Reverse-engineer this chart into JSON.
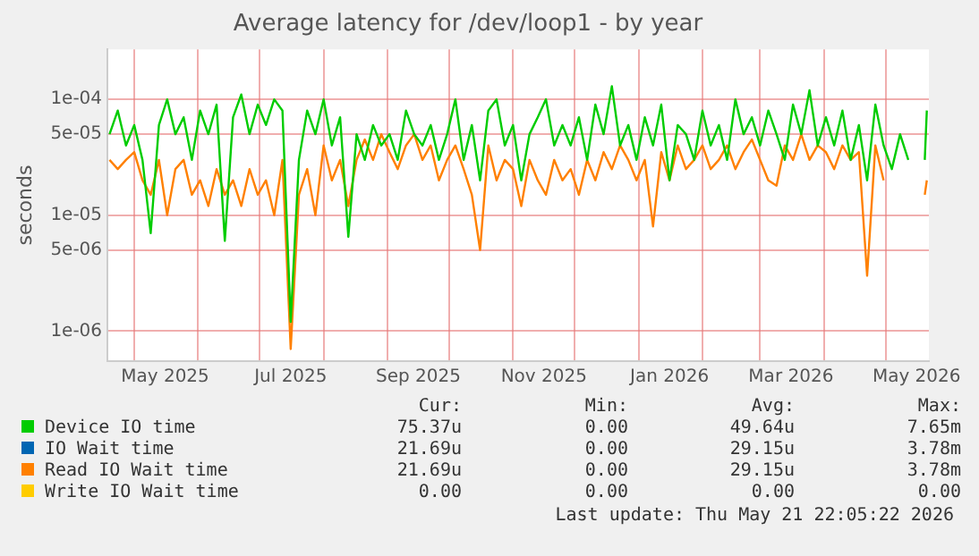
{
  "chart_data": {
    "type": "line",
    "title": "Average latency for /dev/loop1 - by year",
    "ylabel": "seconds",
    "log": "y",
    "grid": true,
    "legend": "bottom",
    "marker": "none",
    "line_style": "solid",
    "x": [
      "2025-04-19",
      "2025-04-23",
      "2025-04-27",
      "2025-05-01",
      "2025-05-05",
      "2025-05-09",
      "2025-05-13",
      "2025-05-17",
      "2025-05-21",
      "2025-05-25",
      "2025-05-29",
      "2025-06-02",
      "2025-06-06",
      "2025-06-10",
      "2025-06-14",
      "2025-06-18",
      "2025-06-22",
      "2025-06-26",
      "2025-06-30",
      "2025-07-04",
      "2025-07-08",
      "2025-07-12",
      "2025-07-16",
      "2025-07-20",
      "2025-07-24",
      "2025-07-28",
      "2025-08-01",
      "2025-08-05",
      "2025-08-09",
      "2025-08-13",
      "2025-08-17",
      "2025-08-21",
      "2025-08-25",
      "2025-08-29",
      "2025-09-02",
      "2025-09-06",
      "2025-09-10",
      "2025-09-14",
      "2025-09-18",
      "2025-09-22",
      "2025-09-26",
      "2025-09-30",
      "2025-10-04",
      "2025-10-08",
      "2025-10-12",
      "2025-10-16",
      "2025-10-20",
      "2025-10-24",
      "2025-10-28",
      "2025-11-01",
      "2025-11-05",
      "2025-11-09",
      "2025-11-13",
      "2025-11-17",
      "2025-11-21",
      "2025-11-25",
      "2025-11-29",
      "2025-12-03",
      "2025-12-07",
      "2025-12-11",
      "2025-12-15",
      "2025-12-19",
      "2025-12-23",
      "2025-12-27",
      "2025-12-31",
      "2026-01-04",
      "2026-01-08",
      "2026-01-12",
      "2026-01-16",
      "2026-01-20",
      "2026-01-24",
      "2026-01-28",
      "2026-02-01",
      "2026-02-05",
      "2026-02-09",
      "2026-02-13",
      "2026-02-17",
      "2026-02-21",
      "2026-02-25",
      "2026-03-01",
      "2026-03-05",
      "2026-03-09",
      "2026-03-13",
      "2026-03-17",
      "2026-03-21",
      "2026-03-25",
      "2026-03-29",
      "2026-04-02",
      "2026-04-06",
      "2026-04-10",
      "2026-04-14",
      "2026-04-18",
      "2026-04-22",
      "2026-04-26",
      "2026-04-30",
      "2026-05-04",
      "2026-05-08",
      "2026-05-12",
      "2026-05-16",
      "2026-05-20",
      "2026-05-21"
    ],
    "xlim": [
      "2025-04-18",
      "2026-05-22"
    ],
    "xticks": [
      {
        "value": "2025-05-01",
        "label": null
      },
      {
        "value": "2025-05-16",
        "label": "May 2025"
      },
      {
        "value": "2025-06-01",
        "label": null
      },
      {
        "value": "2025-07-01",
        "label": null
      },
      {
        "value": "2025-07-16",
        "label": "Jul 2025"
      },
      {
        "value": "2025-08-01",
        "label": null
      },
      {
        "value": "2025-09-01",
        "label": null
      },
      {
        "value": "2025-09-16",
        "label": "Sep 2025"
      },
      {
        "value": "2025-10-01",
        "label": null
      },
      {
        "value": "2025-11-01",
        "label": null
      },
      {
        "value": "2025-11-16",
        "label": "Nov 2025"
      },
      {
        "value": "2025-12-01",
        "label": null
      },
      {
        "value": "2026-01-01",
        "label": null
      },
      {
        "value": "2026-01-16",
        "label": "Jan 2026"
      },
      {
        "value": "2026-02-01",
        "label": null
      },
      {
        "value": "2026-03-01",
        "label": null
      },
      {
        "value": "2026-03-16",
        "label": "Mar 2026"
      },
      {
        "value": "2026-04-01",
        "label": null
      },
      {
        "value": "2026-05-01",
        "label": null
      },
      {
        "value": "2026-05-16",
        "label": "May 2026"
      }
    ],
    "ylim": [
      5.5e-07,
      0.00027
    ],
    "yticks": [
      {
        "value": 1e-06,
        "label": "1e-06"
      },
      {
        "value": 5e-06,
        "label": "5e-06"
      },
      {
        "value": 1e-05,
        "label": "1e-05"
      },
      {
        "value": 5e-05,
        "label": "5e-05"
      },
      {
        "value": 0.0001,
        "label": "1e-04"
      }
    ],
    "series": [
      {
        "name": "Device IO time",
        "color": "#00cc00",
        "values": [
          5e-05,
          8e-05,
          4e-05,
          6e-05,
          3e-05,
          7e-06,
          6e-05,
          0.0001,
          5e-05,
          7e-05,
          3e-05,
          8e-05,
          5e-05,
          9e-05,
          6e-06,
          7e-05,
          0.00011,
          5e-05,
          9e-05,
          6e-05,
          0.0001,
          8e-05,
          1.2e-06,
          3e-05,
          8e-05,
          5e-05,
          0.0001,
          4e-05,
          7e-05,
          6.5e-06,
          5e-05,
          3e-05,
          6e-05,
          4e-05,
          5e-05,
          3e-05,
          8e-05,
          5e-05,
          4e-05,
          6e-05,
          3e-05,
          5e-05,
          0.0001,
          3e-05,
          6e-05,
          2e-05,
          8e-05,
          0.0001,
          4e-05,
          6e-05,
          2e-05,
          5e-05,
          7e-05,
          0.0001,
          4e-05,
          6e-05,
          4e-05,
          7e-05,
          3e-05,
          9e-05,
          5e-05,
          0.00013,
          4e-05,
          6e-05,
          3e-05,
          7e-05,
          4e-05,
          9e-05,
          2e-05,
          6e-05,
          5e-05,
          3e-05,
          8e-05,
          4e-05,
          6e-05,
          3e-05,
          0.0001,
          5e-05,
          7e-05,
          4e-05,
          8e-05,
          5e-05,
          3e-05,
          9e-05,
          5e-05,
          0.00012,
          4e-05,
          7e-05,
          4e-05,
          8e-05,
          3e-05,
          6e-05,
          2e-05,
          9e-05,
          4e-05,
          2.5e-05,
          5e-05,
          3e-05,
          null,
          3e-05,
          8e-05
        ]
      },
      {
        "name": "IO Wait time",
        "color": "#0066b3",
        "values": [
          null,
          null,
          null,
          null,
          null,
          null,
          null,
          null,
          null,
          null,
          null,
          null,
          null,
          null,
          null,
          null,
          null,
          null,
          null,
          null,
          null,
          null,
          null,
          null,
          null,
          null,
          null,
          null,
          null,
          null,
          null,
          null,
          null,
          null,
          null,
          null,
          null,
          null,
          null,
          null,
          null,
          null,
          null,
          null,
          null,
          null,
          null,
          null,
          null,
          null,
          null,
          null,
          null,
          null,
          null,
          null,
          null,
          null,
          null,
          null,
          null,
          null,
          null,
          null,
          null,
          null,
          null,
          null,
          null,
          null,
          null,
          null,
          null,
          null,
          null,
          null,
          null,
          null,
          null,
          null,
          null,
          null,
          null,
          null,
          null,
          null,
          null,
          null,
          null,
          null,
          null,
          null,
          null,
          null,
          null,
          null,
          null,
          null,
          null,
          null,
          null
        ]
      },
      {
        "name": "Read IO Wait time",
        "color": "#ff8000",
        "values": [
          3e-05,
          2.5e-05,
          3e-05,
          3.5e-05,
          2e-05,
          1.5e-05,
          3e-05,
          1e-05,
          2.5e-05,
          3e-05,
          1.5e-05,
          2e-05,
          1.2e-05,
          2.5e-05,
          1.5e-05,
          2e-05,
          1.2e-05,
          2.5e-05,
          1.5e-05,
          2e-05,
          1e-05,
          3e-05,
          7e-07,
          1.5e-05,
          2.5e-05,
          1e-05,
          4e-05,
          2e-05,
          3e-05,
          1.2e-05,
          3e-05,
          4.5e-05,
          3e-05,
          5e-05,
          3.5e-05,
          2.5e-05,
          4e-05,
          5e-05,
          3e-05,
          4e-05,
          2e-05,
          3e-05,
          4e-05,
          2.5e-05,
          1.5e-05,
          5e-06,
          4e-05,
          2e-05,
          3e-05,
          2.5e-05,
          1.2e-05,
          3e-05,
          2e-05,
          1.5e-05,
          3e-05,
          2e-05,
          2.5e-05,
          1.5e-05,
          3e-05,
          2e-05,
          3.5e-05,
          2.5e-05,
          4e-05,
          3e-05,
          2e-05,
          3e-05,
          8e-06,
          3.5e-05,
          2e-05,
          4e-05,
          2.5e-05,
          3e-05,
          4e-05,
          2.5e-05,
          3e-05,
          4e-05,
          2.5e-05,
          3.5e-05,
          4.5e-05,
          3e-05,
          2e-05,
          1.8e-05,
          4e-05,
          3e-05,
          5e-05,
          3e-05,
          4e-05,
          3.5e-05,
          2.5e-05,
          4e-05,
          3e-05,
          3.5e-05,
          3e-06,
          4e-05,
          2e-05,
          null,
          null,
          null,
          null,
          1.5e-05,
          2e-05
        ]
      },
      {
        "name": "Write IO Wait time",
        "color": "#ffcc00",
        "values": [
          null,
          null,
          null,
          null,
          null,
          null,
          null,
          null,
          null,
          null,
          null,
          null,
          null,
          null,
          null,
          null,
          null,
          null,
          null,
          null,
          null,
          null,
          null,
          null,
          null,
          null,
          null,
          null,
          null,
          null,
          null,
          null,
          null,
          null,
          null,
          null,
          null,
          null,
          null,
          null,
          null,
          null,
          null,
          null,
          null,
          null,
          null,
          null,
          null,
          null,
          null,
          null,
          null,
          null,
          null,
          null,
          null,
          null,
          null,
          null,
          null,
          null,
          null,
          null,
          null,
          null,
          null,
          null,
          null,
          null,
          null,
          null,
          null,
          null,
          null,
          null,
          null,
          null,
          null,
          null,
          null,
          null,
          null,
          null,
          null,
          null,
          null,
          null,
          null,
          null,
          null,
          null,
          null,
          null,
          null,
          null,
          null,
          null,
          null,
          null,
          null
        ]
      }
    ],
    "annotations": [
      "Cur:",
      "Min:",
      "Avg:",
      "Max:",
      "75.37u",
      "0.00",
      "49.64u",
      "7.65m",
      "21.69u",
      "0.00",
      "29.15u",
      "3.78m",
      "21.69u",
      "0.00",
      "29.15u",
      "3.78m",
      "0.00",
      "0.00",
      "0.00",
      "0.00",
      "Last update: Thu May 21 22:05:22 2026"
    ]
  }
}
